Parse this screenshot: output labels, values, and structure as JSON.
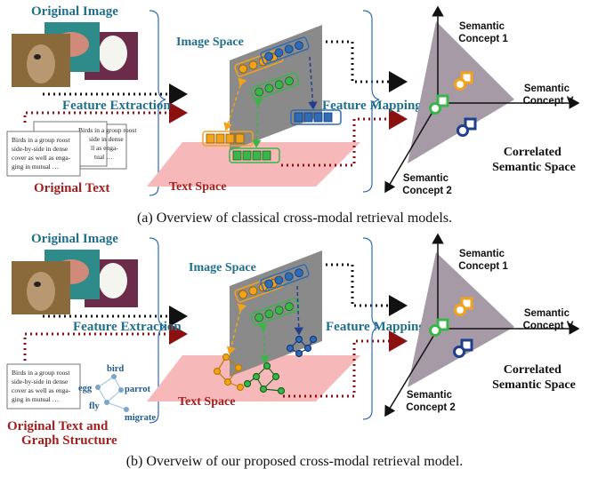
{
  "panel_a": {
    "original_image": "Original Image",
    "feature_extraction": "Feature Extraction",
    "original_text": "Original Text",
    "image_space": "Image Space",
    "text_space": "Text Space",
    "feature_mapping": "Feature Mapping",
    "semantic_concept_1": [
      "Semantic",
      "Concept 1"
    ],
    "semantic_concept_2": [
      "Semantic",
      "Concept 2"
    ],
    "semantic_concept_v": [
      "Semantic",
      "Concept V"
    ],
    "correlated_space": [
      "Correlated",
      "Semantic Space"
    ],
    "caption": "(a) Overview of classical cross-modal retrieval models."
  },
  "panel_b": {
    "original_image": "Original Image",
    "feature_extraction": "Feature Extraction",
    "original_text_graph": [
      "Original Text and",
      "Graph Structure"
    ],
    "image_space": "Image Space",
    "text_space": "Text Space",
    "feature_mapping": "Feature Mapping",
    "semantic_concept_1": [
      "Semantic",
      "Concept 1"
    ],
    "semantic_concept_2": [
      "Semantic",
      "Concept 2"
    ],
    "semantic_concept_v": [
      "Semantic",
      "Concept V"
    ],
    "correlated_space": [
      "Correlated",
      "Semantic Space"
    ],
    "graph_words": [
      "bird",
      "egg",
      "parrot",
      "fly",
      "migrate"
    ],
    "caption": "(b) Overveiw of our proposed cross-modal retrieval model."
  },
  "text_snippet": [
    "Birds in a group roost",
    "side-by-side in dense",
    "cover as well as enga-",
    "ging in mutual …"
  ],
  "text_snippet_back": [
    "Birds in a group roost",
    "side in dense",
    "ll as enga-",
    "tual …"
  ],
  "colors": {
    "teal_label": "#1f6f8b",
    "red_label": "#a31f1f",
    "orange": "#f2a21b",
    "green": "#3bb54a",
    "blue": "#2e6db5",
    "image_plane": "#8a8a8a",
    "text_plane": "#f6b8b8",
    "semantic_triangle": "#a69aa6"
  }
}
